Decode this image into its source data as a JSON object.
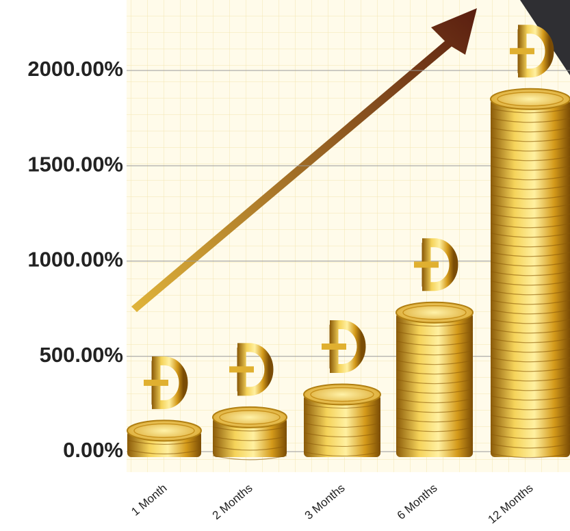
{
  "chart_data": {
    "type": "bar",
    "categories": [
      "1 Month",
      "2 Months",
      "3 Months",
      "6 Months",
      "12 Months"
    ],
    "values": [
      110,
      180,
      300,
      730,
      1850
    ],
    "color": "#d4a21c",
    "ylim": [
      0,
      2000
    ],
    "yticks": [
      {
        "value": 0,
        "label": "0.00%"
      },
      {
        "value": 500,
        "label": "500.00%"
      },
      {
        "value": 1000,
        "label": "1000.00%"
      },
      {
        "value": 1500,
        "label": "1500.00%"
      },
      {
        "value": 2000,
        "label": "2000.00%"
      }
    ],
    "grid": true
  }
}
